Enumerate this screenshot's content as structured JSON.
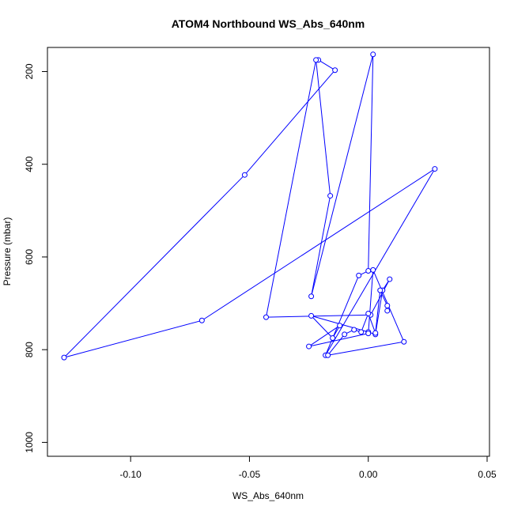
{
  "chart_data": {
    "type": "line",
    "title": "ATOM4 Northbound WS_Abs_640nm",
    "xlabel": "WS_Abs_640nm",
    "ylabel": "Pressure (mbar)",
    "xlim": [
      -0.135,
      0.051
    ],
    "ylim": [
      1030,
      148
    ],
    "y_reversed": true,
    "grid": false,
    "legend": "none",
    "series_color": "#0000ff",
    "markers": "open-circle",
    "x_ticks": [
      -0.1,
      -0.05,
      0.0,
      0.05
    ],
    "x_tick_labels": [
      "-0.10",
      "-0.05",
      "0.00",
      "0.05"
    ],
    "y_ticks": [
      200,
      400,
      600,
      800,
      1000
    ],
    "y_tick_labels": [
      "200",
      "400",
      "600",
      "800",
      "1000"
    ],
    "series": [
      {
        "x": [
          -0.021,
          -0.014,
          -0.052,
          -0.128,
          -0.07,
          0.028,
          -0.018,
          -0.004,
          0.0,
          0.002,
          -0.024,
          -0.016,
          -0.022,
          -0.043,
          0.001,
          0.009,
          0.006,
          0.003,
          0.0,
          -0.024,
          -0.015,
          -0.012,
          -0.025,
          0.0,
          0.002,
          0.015,
          -0.017,
          -0.01,
          -0.006,
          -0.003,
          0.0,
          0.003,
          0.005,
          0.008,
          0.008
        ],
        "y": [
          175,
          197,
          423,
          817,
          737,
          410,
          812,
          640,
          630,
          163,
          685,
          468,
          175,
          730,
          725,
          648,
          672,
          767,
          762,
          727,
          775,
          748,
          793,
          765,
          628,
          783,
          812,
          767,
          757,
          762,
          722,
          764,
          672,
          705,
          716
        ]
      }
    ]
  }
}
